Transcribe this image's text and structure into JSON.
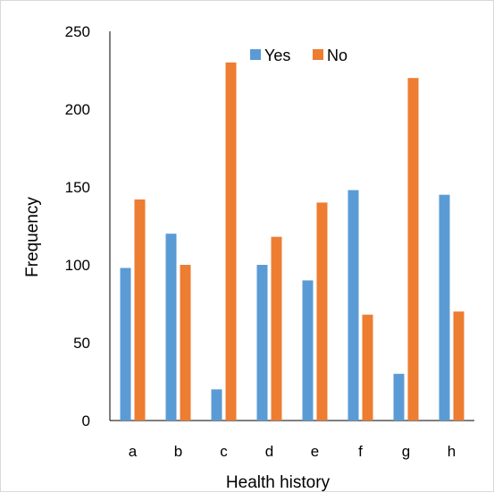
{
  "chart_data": {
    "type": "bar",
    "title": "",
    "xlabel": "Health history",
    "ylabel": "Frequency",
    "categories": [
      "a",
      "b",
      "c",
      "d",
      "e",
      "f",
      "g",
      "h"
    ],
    "series": [
      {
        "name": "Yes",
        "color": "#5b9bd5",
        "values": [
          98,
          120,
          20,
          100,
          90,
          148,
          30,
          145
        ]
      },
      {
        "name": "No",
        "color": "#ed7d31",
        "values": [
          142,
          100,
          230,
          118,
          140,
          68,
          220,
          70
        ]
      }
    ],
    "ylim": [
      0,
      250
    ],
    "yticks": [
      "0",
      "50",
      "100",
      "150",
      "200",
      "250"
    ],
    "grid": false,
    "legend_position": "top-center"
  }
}
